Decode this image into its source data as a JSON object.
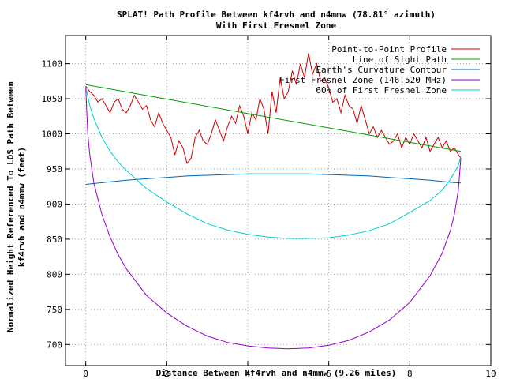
{
  "chart_data": {
    "type": "line",
    "title": "SPLAT! Path Profile Between kf4rvh and n4mmw (78.81° azimuth)",
    "subtitle": "With First Fresnel Zone",
    "xlabel": "Distance Between kf4rvh and n4mmw (9.26 miles)",
    "ylabel_line1": "Normalized Height Referenced To LOS Path Between",
    "ylabel_line2": "kf4rvh and n4mmw (feet)",
    "xlim": [
      -0.5,
      10
    ],
    "ylim": [
      670,
      1140
    ],
    "xticks": [
      0,
      2,
      4,
      6,
      8,
      10
    ],
    "yticks": [
      700,
      750,
      800,
      850,
      900,
      950,
      1000,
      1050,
      1100
    ],
    "grid": true,
    "legend_position": "top-right",
    "series": [
      {
        "name": "Point-to-Point Profile",
        "color": "#cc0000",
        "x": [
          0.0,
          0.1,
          0.2,
          0.3,
          0.4,
          0.5,
          0.6,
          0.7,
          0.8,
          0.9,
          1.0,
          1.1,
          1.2,
          1.3,
          1.4,
          1.5,
          1.6,
          1.7,
          1.8,
          1.9,
          2.0,
          2.1,
          2.2,
          2.3,
          2.4,
          2.5,
          2.6,
          2.7,
          2.8,
          2.9,
          3.0,
          3.1,
          3.2,
          3.3,
          3.4,
          3.5,
          3.6,
          3.7,
          3.8,
          3.9,
          4.0,
          4.1,
          4.2,
          4.3,
          4.4,
          4.5,
          4.6,
          4.7,
          4.8,
          4.9,
          5.0,
          5.1,
          5.2,
          5.3,
          5.4,
          5.5,
          5.6,
          5.7,
          5.8,
          5.9,
          6.0,
          6.1,
          6.2,
          6.3,
          6.4,
          6.5,
          6.6,
          6.7,
          6.8,
          6.9,
          7.0,
          7.1,
          7.2,
          7.3,
          7.4,
          7.5,
          7.6,
          7.7,
          7.8,
          7.9,
          8.0,
          8.1,
          8.2,
          8.3,
          8.4,
          8.5,
          8.6,
          8.7,
          8.8,
          8.9,
          9.0,
          9.1,
          9.26
        ],
        "y": [
          1068,
          1060,
          1055,
          1045,
          1050,
          1040,
          1030,
          1045,
          1050,
          1035,
          1030,
          1040,
          1055,
          1045,
          1035,
          1040,
          1020,
          1010,
          1030,
          1015,
          1005,
          995,
          970,
          990,
          980,
          958,
          965,
          995,
          1005,
          990,
          985,
          1000,
          1020,
          1005,
          990,
          1010,
          1025,
          1015,
          1040,
          1025,
          1000,
          1030,
          1020,
          1050,
          1035,
          1000,
          1060,
          1030,
          1080,
          1050,
          1060,
          1090,
          1070,
          1100,
          1080,
          1115,
          1085,
          1100,
          1075,
          1080,
          1065,
          1045,
          1050,
          1030,
          1055,
          1040,
          1035,
          1015,
          1040,
          1020,
          1000,
          1010,
          995,
          1005,
          995,
          985,
          990,
          1000,
          980,
          995,
          985,
          1000,
          990,
          980,
          995,
          975,
          985,
          995,
          980,
          990,
          975,
          980,
          965
        ]
      },
      {
        "name": "Line of Sight Path",
        "color": "#00a000",
        "x": [
          0.0,
          9.26
        ],
        "y": [
          1070,
          975
        ]
      },
      {
        "name": "Earth's Curvature Contour",
        "color": "#0066b3",
        "x": [
          0.0,
          0.5,
          1.0,
          1.5,
          2.0,
          2.5,
          3.0,
          3.5,
          4.0,
          4.5,
          5.0,
          5.5,
          6.0,
          6.5,
          7.0,
          7.5,
          8.0,
          8.5,
          9.0,
          9.26
        ],
        "y": [
          928,
          931,
          934,
          936,
          938,
          940,
          941,
          942,
          943,
          943,
          943,
          943,
          942,
          941,
          940,
          938,
          936,
          934,
          931,
          930
        ]
      },
      {
        "name": "First Fresnel Zone (146.520 MHz)",
        "color": "#9900cc",
        "x": [
          0.0,
          0.05,
          0.1,
          0.2,
          0.4,
          0.6,
          0.8,
          1.0,
          1.5,
          2.0,
          2.5,
          3.0,
          3.5,
          4.0,
          4.5,
          5.0,
          5.5,
          6.0,
          6.5,
          7.0,
          7.5,
          8.0,
          8.5,
          8.8,
          9.0,
          9.1,
          9.2,
          9.26
        ],
        "y": [
          1065,
          1000,
          970,
          930,
          885,
          853,
          828,
          808,
          770,
          745,
          726,
          712,
          703,
          698,
          695,
          694,
          695,
          699,
          706,
          718,
          735,
          760,
          798,
          830,
          862,
          885,
          920,
          965
        ]
      },
      {
        "name": "60% of First Fresnel Zone",
        "color": "#00cccc",
        "x": [
          0.0,
          0.1,
          0.2,
          0.4,
          0.6,
          0.8,
          1.0,
          1.5,
          2.0,
          2.5,
          3.0,
          3.5,
          4.0,
          4.5,
          5.0,
          5.5,
          6.0,
          6.5,
          7.0,
          7.5,
          8.0,
          8.5,
          8.8,
          9.0,
          9.2,
          9.26
        ],
        "y": [
          1067,
          1040,
          1022,
          995,
          975,
          960,
          948,
          922,
          903,
          886,
          872,
          863,
          857,
          853,
          851,
          851,
          852,
          856,
          862,
          872,
          888,
          905,
          920,
          935,
          955,
          968
        ]
      }
    ]
  }
}
